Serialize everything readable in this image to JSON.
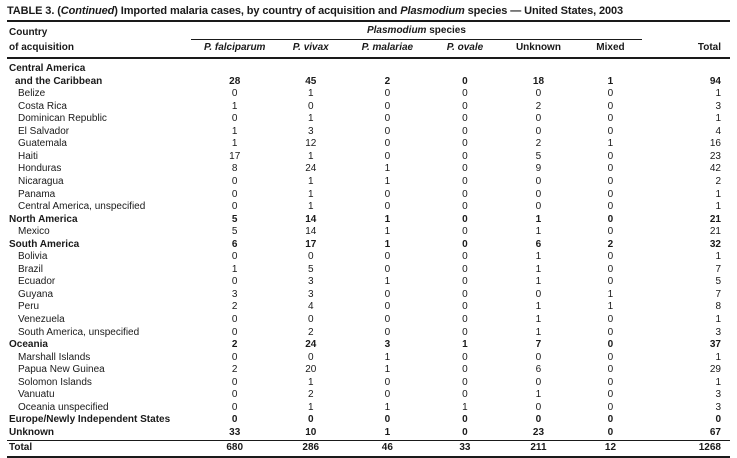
{
  "title": {
    "part1": "TABLE 3. (",
    "continued": "Continued",
    "part2": ") Imported malaria cases, by country of acquisition and ",
    "plasmodium": "Plasmodium",
    "part3": " species — United States, 2003"
  },
  "header": {
    "country_line1": "Country",
    "country_line2": "of acquisition",
    "species_group_italic": "Plasmodium",
    "species_group_rest": " species",
    "columns": [
      {
        "label": "P. falciparum",
        "italic": true
      },
      {
        "label": "P. vivax",
        "italic": true
      },
      {
        "label": "P. malariae",
        "italic": true
      },
      {
        "label": "P. ovale",
        "italic": true
      },
      {
        "label": "Unknown",
        "italic": false
      },
      {
        "label": "Mixed",
        "italic": false
      }
    ],
    "total_column": "Total"
  },
  "table_rows": [
    {
      "label": "Central America",
      "indent": 0,
      "bold": true,
      "values": null
    },
    {
      "label": "and the Caribbean",
      "indent": 1,
      "bold": true,
      "values": [
        28,
        45,
        2,
        0,
        18,
        1,
        94
      ]
    },
    {
      "label": "Belize",
      "indent": 2,
      "bold": false,
      "values": [
        0,
        1,
        0,
        0,
        0,
        0,
        1
      ]
    },
    {
      "label": "Costa Rica",
      "indent": 2,
      "bold": false,
      "values": [
        1,
        0,
        0,
        0,
        2,
        0,
        3
      ]
    },
    {
      "label": "Dominican Republic",
      "indent": 2,
      "bold": false,
      "values": [
        0,
        1,
        0,
        0,
        0,
        0,
        1
      ]
    },
    {
      "label": "El Salvador",
      "indent": 2,
      "bold": false,
      "values": [
        1,
        3,
        0,
        0,
        0,
        0,
        4
      ]
    },
    {
      "label": "Guatemala",
      "indent": 2,
      "bold": false,
      "values": [
        1,
        12,
        0,
        0,
        2,
        1,
        16
      ]
    },
    {
      "label": "Haiti",
      "indent": 2,
      "bold": false,
      "values": [
        17,
        1,
        0,
        0,
        5,
        0,
        23
      ]
    },
    {
      "label": "Honduras",
      "indent": 2,
      "bold": false,
      "values": [
        8,
        24,
        1,
        0,
        9,
        0,
        42
      ]
    },
    {
      "label": "Nicaragua",
      "indent": 2,
      "bold": false,
      "values": [
        0,
        1,
        1,
        0,
        0,
        0,
        2
      ]
    },
    {
      "label": "Panama",
      "indent": 2,
      "bold": false,
      "values": [
        0,
        1,
        0,
        0,
        0,
        0,
        1
      ]
    },
    {
      "label": "Central America, unspecified",
      "indent": 2,
      "bold": false,
      "values": [
        0,
        1,
        0,
        0,
        0,
        0,
        1
      ]
    },
    {
      "label": "North America",
      "indent": 0,
      "bold": true,
      "values": [
        5,
        14,
        1,
        0,
        1,
        0,
        21
      ]
    },
    {
      "label": "Mexico",
      "indent": 2,
      "bold": false,
      "values": [
        5,
        14,
        1,
        0,
        1,
        0,
        21
      ]
    },
    {
      "label": "South America",
      "indent": 0,
      "bold": true,
      "values": [
        6,
        17,
        1,
        0,
        6,
        2,
        32
      ]
    },
    {
      "label": "Bolivia",
      "indent": 2,
      "bold": false,
      "values": [
        0,
        0,
        0,
        0,
        1,
        0,
        1
      ]
    },
    {
      "label": "Brazil",
      "indent": 2,
      "bold": false,
      "values": [
        1,
        5,
        0,
        0,
        1,
        0,
        7
      ]
    },
    {
      "label": "Ecuador",
      "indent": 2,
      "bold": false,
      "values": [
        0,
        3,
        1,
        0,
        1,
        0,
        5
      ]
    },
    {
      "label": "Guyana",
      "indent": 2,
      "bold": false,
      "values": [
        3,
        3,
        0,
        0,
        0,
        1,
        7
      ]
    },
    {
      "label": "Peru",
      "indent": 2,
      "bold": false,
      "values": [
        2,
        4,
        0,
        0,
        1,
        1,
        8
      ]
    },
    {
      "label": "Venezuela",
      "indent": 2,
      "bold": false,
      "values": [
        0,
        0,
        0,
        0,
        1,
        0,
        1
      ]
    },
    {
      "label": "South America, unspecified",
      "indent": 2,
      "bold": false,
      "values": [
        0,
        2,
        0,
        0,
        1,
        0,
        3
      ]
    },
    {
      "label": "Oceania",
      "indent": 0,
      "bold": true,
      "values": [
        2,
        24,
        3,
        1,
        7,
        0,
        37
      ]
    },
    {
      "label": "Marshall Islands",
      "indent": 2,
      "bold": false,
      "values": [
        0,
        0,
        1,
        0,
        0,
        0,
        1
      ]
    },
    {
      "label": "Papua New Guinea",
      "indent": 2,
      "bold": false,
      "values": [
        2,
        20,
        1,
        0,
        6,
        0,
        29
      ]
    },
    {
      "label": "Solomon Islands",
      "indent": 2,
      "bold": false,
      "values": [
        0,
        1,
        0,
        0,
        0,
        0,
        1
      ]
    },
    {
      "label": "Vanuatu",
      "indent": 2,
      "bold": false,
      "values": [
        0,
        2,
        0,
        0,
        1,
        0,
        3
      ]
    },
    {
      "label": "Oceania unspecified",
      "indent": 2,
      "bold": false,
      "values": [
        0,
        1,
        1,
        1,
        0,
        0,
        3
      ]
    },
    {
      "label": "Europe/Newly Independent States",
      "indent": 0,
      "bold": true,
      "values": [
        0,
        0,
        0,
        0,
        0,
        0,
        0
      ]
    },
    {
      "label": "Unknown",
      "indent": 0,
      "bold": true,
      "values": [
        33,
        10,
        1,
        0,
        23,
        0,
        67
      ]
    }
  ],
  "total_row": {
    "label": "Total",
    "values": [
      680,
      286,
      46,
      33,
      211,
      12,
      1268
    ]
  }
}
